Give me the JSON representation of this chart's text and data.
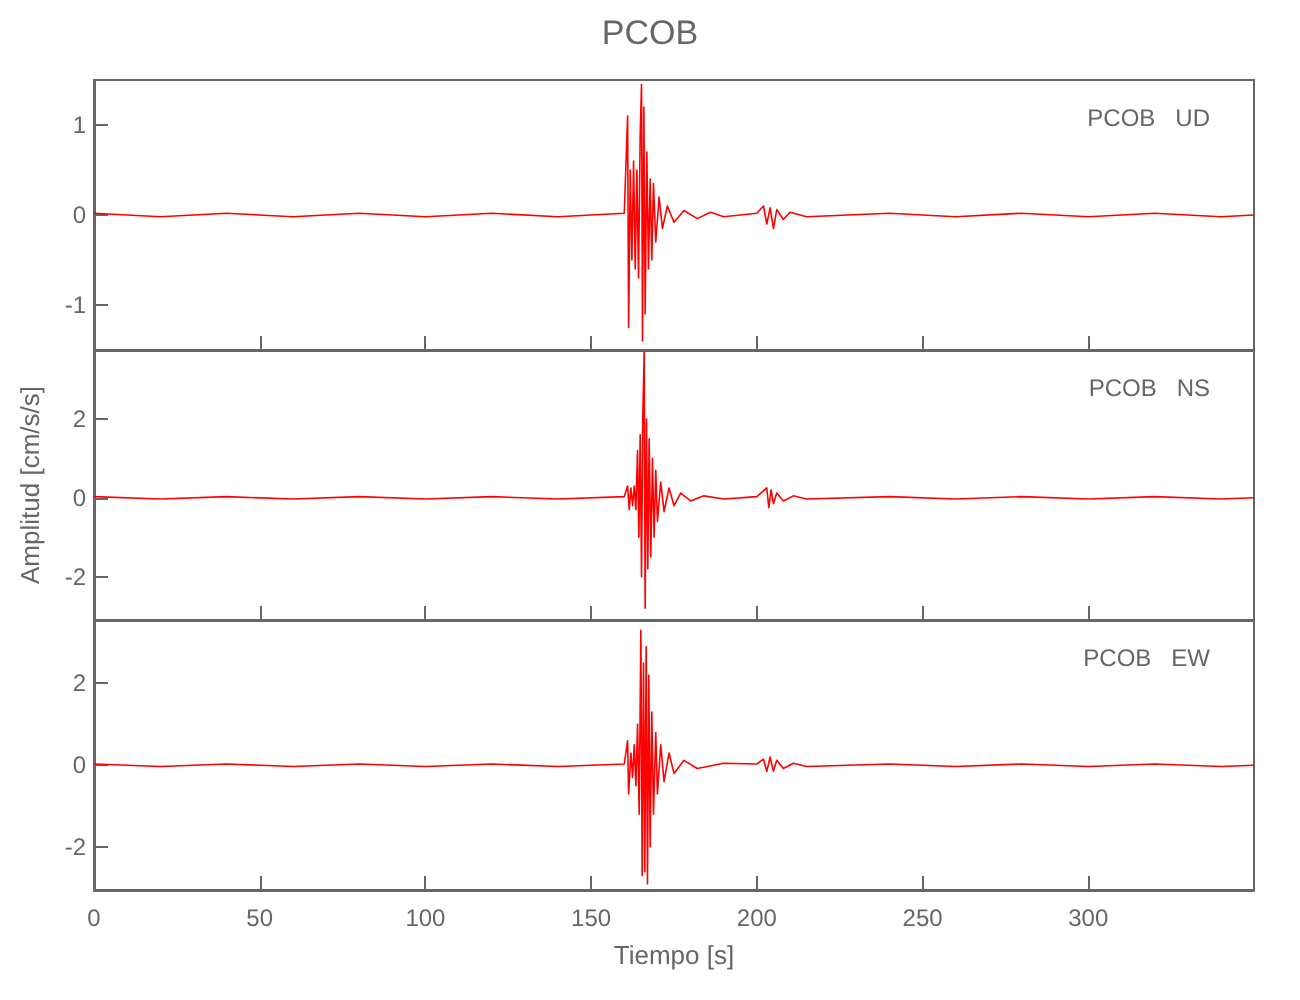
{
  "chart_data": [
    {
      "type": "line",
      "title": "PCOB",
      "annotations": [
        "PCOB   UD"
      ],
      "xlim": [
        0,
        350
      ],
      "xticks": [
        0,
        50,
        100,
        150,
        200,
        250,
        300
      ],
      "ylim": [
        -1.5,
        1.5
      ],
      "yticks": [
        -1,
        0,
        1
      ],
      "tick_labels": "y",
      "grid": false,
      "marker": "none",
      "series": [
        {
          "color": "#ff0000",
          "x": [
            0,
            20,
            40,
            60,
            80,
            100,
            120,
            140,
            160,
            161,
            161.3,
            161.8,
            162.3,
            162.8,
            163.3,
            163.8,
            164.3,
            164.8,
            165.2,
            165.5,
            165.9,
            166.3,
            166.8,
            167.3,
            167.8,
            168.3,
            168.8,
            169.5,
            170.5,
            171.5,
            173,
            175,
            178,
            182,
            186,
            190,
            200,
            202,
            203,
            204,
            205,
            206,
            208,
            210,
            215,
            240,
            260,
            280,
            300,
            320,
            340,
            350
          ],
          "values": [
            0.02,
            -0.02,
            0.02,
            -0.02,
            0.02,
            -0.02,
            0.02,
            -0.02,
            0.02,
            1.1,
            -1.25,
            0.5,
            -0.5,
            0.6,
            -0.6,
            0.5,
            -0.7,
            0.9,
            1.45,
            -1.4,
            1.2,
            -1.1,
            0.7,
            -0.6,
            0.4,
            -0.5,
            0.35,
            -0.3,
            0.2,
            -0.15,
            0.1,
            -0.08,
            0.05,
            -0.04,
            0.03,
            -0.02,
            0.02,
            0.1,
            -0.1,
            0.08,
            -0.15,
            0.06,
            -0.05,
            0.03,
            -0.02,
            0.02,
            -0.02,
            0.02,
            -0.02,
            0.02,
            -0.02,
            0
          ]
        }
      ]
    },
    {
      "type": "line",
      "ylabel": "Amplitud [cm/s/s]",
      "annotations": [
        "PCOB   NS"
      ],
      "xlim": [
        0,
        350
      ],
      "xticks": [
        0,
        50,
        100,
        150,
        200,
        250,
        300
      ],
      "ylim": [
        -3.1,
        3.75
      ],
      "yticks": [
        -2,
        0,
        2
      ],
      "tick_labels": "y",
      "grid": false,
      "marker": "none",
      "series": [
        {
          "color": "#ff0000",
          "x": [
            0,
            20,
            40,
            60,
            80,
            100,
            120,
            140,
            160,
            161,
            161.5,
            162,
            162.5,
            163,
            163.5,
            164,
            164.4,
            164.8,
            165.2,
            165.6,
            166,
            166.3,
            166.7,
            167.1,
            167.5,
            168,
            168.5,
            169,
            169.5,
            170,
            171,
            172,
            173.5,
            175,
            177,
            180,
            184,
            190,
            200,
            203,
            203.6,
            204.3,
            205,
            206,
            208,
            211,
            215,
            240,
            260,
            280,
            300,
            320,
            340,
            350
          ],
          "values": [
            0.03,
            -0.03,
            0.03,
            -0.03,
            0.03,
            -0.03,
            0.03,
            -0.03,
            0.03,
            0.3,
            -0.3,
            0.25,
            -0.2,
            0.3,
            -0.3,
            1.2,
            -1.0,
            1.6,
            -2.0,
            2.1,
            3.7,
            -2.8,
            2.0,
            -1.8,
            1.5,
            -1.5,
            1.0,
            -1.0,
            0.7,
            -0.6,
            0.4,
            -0.35,
            0.25,
            -0.2,
            0.12,
            -0.08,
            0.05,
            -0.03,
            0.03,
            0.25,
            -0.25,
            0.2,
            -0.15,
            0.12,
            -0.08,
            0.05,
            -0.03,
            0.03,
            -0.03,
            0.03,
            -0.03,
            0.03,
            -0.03,
            0
          ]
        }
      ]
    },
    {
      "type": "line",
      "xlabel": "Tiempo [s]",
      "annotations": [
        "PCOB   EW"
      ],
      "xlim": [
        0,
        350
      ],
      "xticks": [
        0,
        50,
        100,
        150,
        200,
        250,
        300
      ],
      "ylim": [
        -3.05,
        3.55
      ],
      "yticks": [
        -2,
        0,
        2
      ],
      "grid": false,
      "marker": "none",
      "series": [
        {
          "color": "#ff0000",
          "x": [
            0,
            20,
            40,
            60,
            80,
            100,
            120,
            140,
            160,
            161,
            161.3,
            162,
            162.5,
            163,
            163.5,
            164,
            164.5,
            165,
            165.4,
            165.8,
            166.2,
            166.6,
            167,
            167.4,
            167.8,
            168.3,
            168.8,
            169.5,
            170,
            171,
            172,
            173.5,
            175,
            178,
            182,
            190,
            200,
            202,
            203,
            204,
            205,
            206,
            208,
            211,
            215,
            240,
            260,
            280,
            300,
            320,
            340,
            350
          ],
          "values": [
            0.03,
            -0.03,
            0.03,
            -0.03,
            0.03,
            -0.03,
            0.03,
            -0.03,
            0.03,
            0.6,
            -0.7,
            0.3,
            -0.3,
            0.5,
            -0.5,
            1.0,
            -1.2,
            3.3,
            -2.7,
            2.5,
            -2.6,
            2.9,
            -2.9,
            2.2,
            -2.0,
            1.3,
            -1.2,
            0.8,
            -0.7,
            0.5,
            -0.4,
            0.3,
            -0.2,
            0.12,
            -0.08,
            0.05,
            0.03,
            0.15,
            -0.15,
            0.2,
            -0.15,
            0.12,
            -0.08,
            0.05,
            -0.03,
            0.03,
            -0.03,
            0.03,
            -0.03,
            0.03,
            -0.03,
            0
          ]
        }
      ]
    }
  ]
}
